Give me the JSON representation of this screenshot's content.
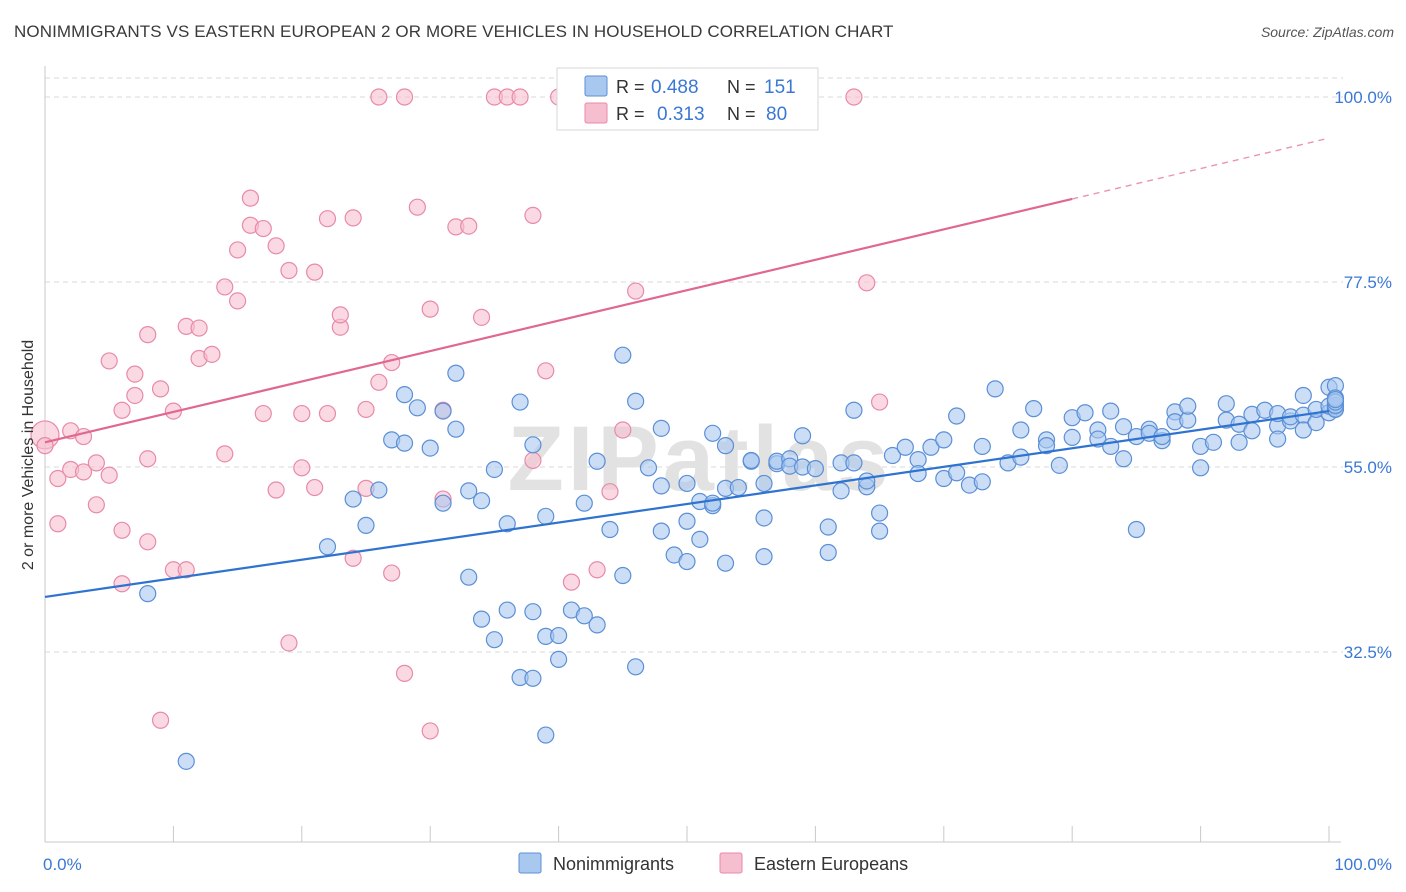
{
  "title": "NONIMMIGRANTS VS EASTERN EUROPEAN 2 OR MORE VEHICLES IN HOUSEHOLD CORRELATION CHART",
  "source": "Source: ZipAtlas.com",
  "watermark": "ZIPatlas",
  "colors": {
    "blue_fill": "#a9c8f0",
    "blue_stroke": "#5b8fd6",
    "blue_line": "#2f73d1",
    "pink_fill": "#f6bfd0",
    "pink_stroke": "#e88aa8",
    "pink_line": "#e0688f",
    "tick_label": "#3b78d4",
    "grid": "#d8d8d8"
  },
  "legend_top": {
    "rows": [
      {
        "r_label": "R =",
        "r_value": "0.488",
        "n_label": "N =",
        "n_value": "151"
      },
      {
        "r_label": "R =",
        "r_value": "0.313",
        "n_label": "N =",
        "n_value": "80"
      }
    ]
  },
  "legend_bottom": [
    "Nonimmigrants",
    "Eastern Europeans"
  ],
  "chart_data": {
    "type": "scatter",
    "title": "NONIMMIGRANTS VS EASTERN EUROPEAN 2 OR MORE VEHICLES IN HOUSEHOLD CORRELATION CHART",
    "xlabel": "",
    "ylabel": "2 or more Vehicles in Household",
    "xlim": [
      0,
      100
    ],
    "ylim": [
      10,
      100
    ],
    "x_tick_labels": [
      "0.0%",
      "100.0%"
    ],
    "y_ticks": [
      32.5,
      55.0,
      77.5,
      100.0
    ],
    "y_tick_labels": [
      "32.5%",
      "55.0%",
      "77.5%",
      "100.0%"
    ],
    "grid": "horizontal dashed",
    "legend_position": "top-center",
    "series": [
      {
        "name": "Nonimmigrants",
        "r": 0.488,
        "n": 151,
        "trend": {
          "x0": 0,
          "y0": 39.2,
          "x1": 100,
          "y1": 61.8,
          "dashed_from": 100
        },
        "points": [
          [
            8,
            39.6
          ],
          [
            11,
            19.2
          ],
          [
            22,
            45.3
          ],
          [
            24,
            51.1
          ],
          [
            25,
            47.9
          ],
          [
            26,
            52.2
          ],
          [
            27,
            58.3
          ],
          [
            28,
            63.8
          ],
          [
            28,
            57.9
          ],
          [
            29,
            62.2
          ],
          [
            30,
            57.3
          ],
          [
            31,
            50.6
          ],
          [
            31,
            61.8
          ],
          [
            32,
            66.4
          ],
          [
            32,
            59.6
          ],
          [
            33,
            52.1
          ],
          [
            33,
            41.6
          ],
          [
            34,
            50.9
          ],
          [
            34,
            36.5
          ],
          [
            35,
            54.7
          ],
          [
            35,
            34.0
          ],
          [
            36,
            48.1
          ],
          [
            36,
            37.6
          ],
          [
            37,
            62.9
          ],
          [
            38,
            37.4
          ],
          [
            37,
            29.4
          ],
          [
            38,
            29.3
          ],
          [
            38,
            57.7
          ],
          [
            39,
            22.4
          ],
          [
            39,
            49.0
          ],
          [
            39,
            34.4
          ],
          [
            40,
            34.5
          ],
          [
            40,
            31.6
          ],
          [
            41,
            37.6
          ],
          [
            42,
            50.6
          ],
          [
            42,
            36.9
          ],
          [
            43,
            55.7
          ],
          [
            43,
            35.8
          ],
          [
            44,
            47.4
          ],
          [
            45,
            68.6
          ],
          [
            45,
            41.8
          ],
          [
            46,
            63.0
          ],
          [
            46,
            30.7
          ],
          [
            47,
            54.9
          ],
          [
            48,
            52.7
          ],
          [
            48,
            47.2
          ],
          [
            48,
            59.7
          ],
          [
            49,
            44.3
          ],
          [
            50,
            48.4
          ],
          [
            50,
            53.0
          ],
          [
            50,
            43.5
          ],
          [
            51,
            46.2
          ],
          [
            51,
            50.8
          ],
          [
            52,
            50.3
          ],
          [
            52,
            59.1
          ],
          [
            52,
            50.6
          ],
          [
            53,
            57.6
          ],
          [
            53,
            52.4
          ],
          [
            53,
            43.3
          ],
          [
            54,
            52.5
          ],
          [
            55,
            55.7
          ],
          [
            55,
            55.8
          ],
          [
            56,
            48.8
          ],
          [
            56,
            53.0
          ],
          [
            56,
            44.1
          ],
          [
            57,
            55.4
          ],
          [
            57,
            55.7
          ],
          [
            58,
            56.0
          ],
          [
            58,
            55.1
          ],
          [
            59,
            55.0
          ],
          [
            59,
            58.8
          ],
          [
            60,
            54.8
          ],
          [
            61,
            44.6
          ],
          [
            61,
            47.7
          ],
          [
            62,
            52.1
          ],
          [
            62,
            55.5
          ],
          [
            63,
            55.5
          ],
          [
            63,
            61.9
          ],
          [
            64,
            52.6
          ],
          [
            64,
            53.3
          ],
          [
            65,
            49.4
          ],
          [
            65,
            47.2
          ],
          [
            66,
            56.4
          ],
          [
            67,
            57.4
          ],
          [
            68,
            55.9
          ],
          [
            68,
            54.2
          ],
          [
            69,
            57.4
          ],
          [
            70,
            58.3
          ],
          [
            70,
            53.6
          ],
          [
            71,
            61.2
          ],
          [
            71,
            54.3
          ],
          [
            72,
            52.8
          ],
          [
            73,
            57.5
          ],
          [
            73,
            53.2
          ],
          [
            74,
            64.5
          ],
          [
            75,
            55.5
          ],
          [
            76,
            56.2
          ],
          [
            76,
            59.5
          ],
          [
            77,
            62.1
          ],
          [
            78,
            58.3
          ],
          [
            78,
            57.6
          ],
          [
            79,
            55.2
          ],
          [
            80,
            61.0
          ],
          [
            80,
            58.6
          ],
          [
            81,
            61.6
          ],
          [
            82,
            59.5
          ],
          [
            82,
            58.4
          ],
          [
            83,
            61.8
          ],
          [
            83,
            57.5
          ],
          [
            84,
            59.9
          ],
          [
            84,
            56.0
          ],
          [
            85,
            58.7
          ],
          [
            85,
            47.4
          ],
          [
            86,
            59.6
          ],
          [
            86,
            59.1
          ],
          [
            87,
            58.2
          ],
          [
            87,
            58.7
          ],
          [
            88,
            61.7
          ],
          [
            88,
            60.5
          ],
          [
            89,
            60.7
          ],
          [
            89,
            62.4
          ],
          [
            90,
            57.5
          ],
          [
            90,
            54.9
          ],
          [
            91,
            58.0
          ],
          [
            92,
            60.7
          ],
          [
            92,
            62.7
          ],
          [
            93,
            60.2
          ],
          [
            93,
            58.0
          ],
          [
            94,
            61.4
          ],
          [
            94,
            59.4
          ],
          [
            95,
            61.9
          ],
          [
            96,
            60.0
          ],
          [
            96,
            58.4
          ],
          [
            96,
            61.5
          ],
          [
            97,
            60.6
          ],
          [
            97,
            61.1
          ],
          [
            98,
            61.3
          ],
          [
            98,
            63.7
          ],
          [
            98,
            59.5
          ],
          [
            99,
            60.4
          ],
          [
            99,
            62.0
          ],
          [
            100,
            61.6
          ],
          [
            100,
            64.7
          ],
          [
            100,
            62.4
          ],
          [
            101,
            62.1
          ],
          [
            101,
            64.9
          ],
          [
            102,
            62.4
          ],
          [
            102,
            62.0
          ],
          [
            103,
            62.5
          ],
          [
            103,
            63.4
          ],
          [
            103,
            62.9
          ],
          [
            104,
            63.2
          ]
        ]
      },
      {
        "name": "Eastern Europeans",
        "r": 0.313,
        "n": 80,
        "trend": {
          "x0": 0,
          "y0": 58.0,
          "x1": 80,
          "y1": 87.6
        },
        "points": [
          [
            0,
            58.9
          ],
          [
            0,
            57.6
          ],
          [
            1,
            48.1
          ],
          [
            1,
            53.6
          ],
          [
            2,
            54.7
          ],
          [
            2,
            59.4
          ],
          [
            3,
            58.7
          ],
          [
            3,
            54.4
          ],
          [
            4,
            50.4
          ],
          [
            4,
            55.5
          ],
          [
            5,
            67.9
          ],
          [
            5,
            54.0
          ],
          [
            6,
            47.3
          ],
          [
            6,
            40.8
          ],
          [
            6,
            61.9
          ],
          [
            7,
            66.3
          ],
          [
            7,
            63.7
          ],
          [
            8,
            71.1
          ],
          [
            8,
            45.9
          ],
          [
            8,
            56.0
          ],
          [
            9,
            24.2
          ],
          [
            9,
            64.5
          ],
          [
            10,
            61.8
          ],
          [
            10,
            42.5
          ],
          [
            11,
            72.1
          ],
          [
            11,
            42.5
          ],
          [
            12,
            68.2
          ],
          [
            12,
            71.9
          ],
          [
            13,
            68.7
          ],
          [
            14,
            76.9
          ],
          [
            14,
            56.6
          ],
          [
            15,
            75.2
          ],
          [
            15,
            81.4
          ],
          [
            16,
            84.4
          ],
          [
            16,
            87.7
          ],
          [
            17,
            84.0
          ],
          [
            17,
            61.5
          ],
          [
            18,
            81.9
          ],
          [
            18,
            52.2
          ],
          [
            19,
            78.9
          ],
          [
            19,
            33.6
          ],
          [
            20,
            54.9
          ],
          [
            20,
            61.5
          ],
          [
            21,
            52.5
          ],
          [
            21,
            78.7
          ],
          [
            22,
            85.2
          ],
          [
            22,
            61.5
          ],
          [
            23,
            72.0
          ],
          [
            23,
            73.5
          ],
          [
            24,
            85.3
          ],
          [
            24,
            43.9
          ],
          [
            25,
            62.0
          ],
          [
            25,
            52.4
          ],
          [
            26,
            65.3
          ],
          [
            26,
            100
          ],
          [
            27,
            42.1
          ],
          [
            27,
            67.7
          ],
          [
            28,
            29.9
          ],
          [
            28,
            100
          ],
          [
            29,
            86.6
          ],
          [
            30,
            22.9
          ],
          [
            30,
            74.2
          ],
          [
            31,
            61.9
          ],
          [
            31,
            51.1
          ],
          [
            32,
            84.2
          ],
          [
            33,
            84.3
          ],
          [
            34,
            73.2
          ],
          [
            35,
            100
          ],
          [
            36,
            100
          ],
          [
            37,
            100
          ],
          [
            38,
            85.6
          ],
          [
            38,
            55.8
          ],
          [
            39,
            66.7
          ],
          [
            40,
            100
          ],
          [
            41,
            41.0
          ],
          [
            43,
            42.5
          ],
          [
            44,
            52.0
          ],
          [
            45,
            59.5
          ],
          [
            46,
            76.4
          ],
          [
            63,
            100
          ],
          [
            64,
            77.4
          ],
          [
            65,
            62.9
          ]
        ]
      }
    ]
  }
}
